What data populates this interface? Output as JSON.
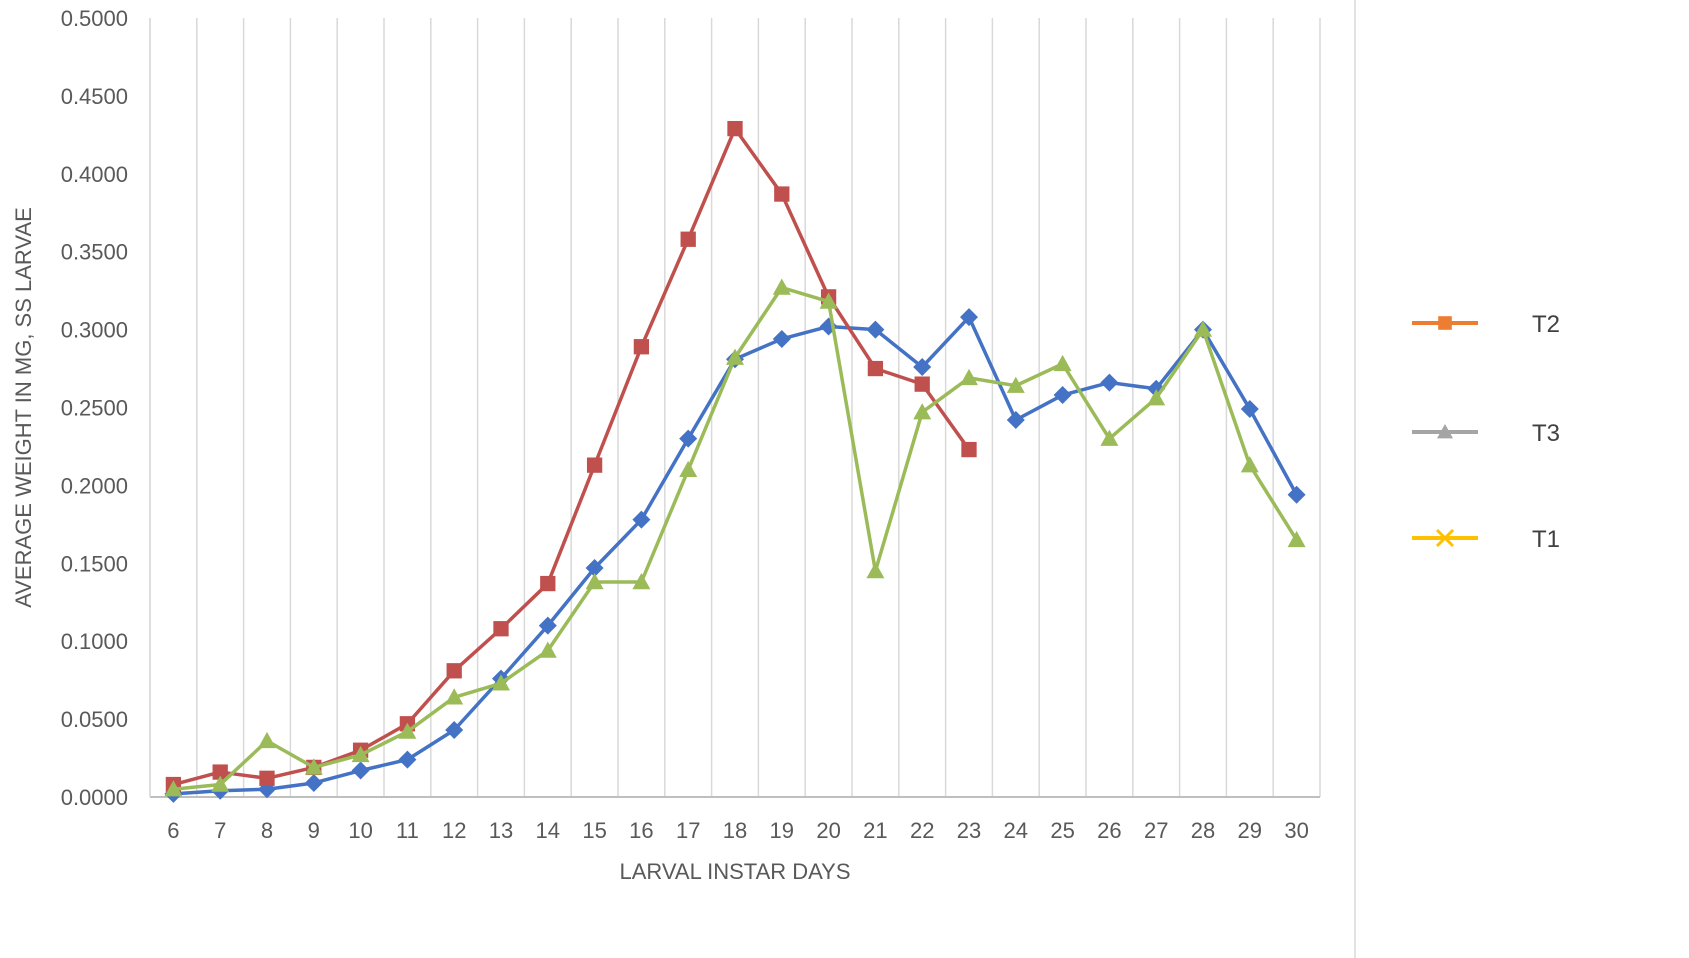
{
  "chart_data": {
    "type": "line",
    "title": "",
    "xlabel": "LARVAL INSTAR DAYS",
    "ylabel": "AVERAGE WEIGHT IN MG, SS LARVAE",
    "x": [
      6,
      7,
      8,
      9,
      10,
      11,
      12,
      13,
      14,
      15,
      16,
      17,
      18,
      19,
      20,
      21,
      22,
      23,
      24,
      25,
      26,
      27,
      28,
      29,
      30
    ],
    "xticks": [
      "6",
      "7",
      "8",
      "9",
      "10",
      "11",
      "12",
      "13",
      "14",
      "15",
      "16",
      "17",
      "18",
      "19",
      "20",
      "21",
      "22",
      "23",
      "24",
      "25",
      "26",
      "27",
      "28",
      "29",
      "30"
    ],
    "ylim": [
      0,
      0.5
    ],
    "yticks": [
      "0.0000",
      "0.0500",
      "0.1000",
      "0.1500",
      "0.2000",
      "0.2500",
      "0.3000",
      "0.3500",
      "0.4000",
      "0.4500",
      "0.5000"
    ],
    "grid": "vertical",
    "legend_position": "right",
    "series": [
      {
        "color": "#4472C4",
        "marker": "diamond",
        "values": [
          0.002,
          0.004,
          0.005,
          0.009,
          0.017,
          0.024,
          0.043,
          0.076,
          0.11,
          0.147,
          0.178,
          0.23,
          0.281,
          0.294,
          0.302,
          0.3,
          0.276,
          0.308,
          0.242,
          0.258,
          0.266,
          0.262,
          0.3,
          0.249,
          0.194
        ]
      },
      {
        "color": "#C0504D",
        "marker": "square",
        "values": [
          0.008,
          0.016,
          0.012,
          0.019,
          0.03,
          0.047,
          0.081,
          0.108,
          0.137,
          0.213,
          0.289,
          0.358,
          0.429,
          0.387,
          0.321,
          0.275,
          0.265,
          0.223,
          null,
          null,
          null,
          null,
          null,
          null,
          null
        ]
      },
      {
        "color": "#9BBB59",
        "marker": "triangle",
        "values": [
          0.005,
          0.008,
          0.036,
          0.019,
          0.027,
          0.042,
          0.064,
          0.073,
          0.094,
          0.138,
          0.138,
          0.21,
          0.282,
          0.327,
          0.318,
          0.145,
          0.247,
          0.269,
          0.264,
          0.278,
          0.23,
          0.256,
          0.3,
          0.213,
          0.165
        ]
      }
    ],
    "legend": [
      {
        "label": "T2",
        "color": "#ED7D31",
        "marker": "square"
      },
      {
        "label": "T3",
        "color": "#A5A5A5",
        "marker": "triangle"
      },
      {
        "label": "T1",
        "color": "#FFC000",
        "marker": "x"
      }
    ]
  }
}
